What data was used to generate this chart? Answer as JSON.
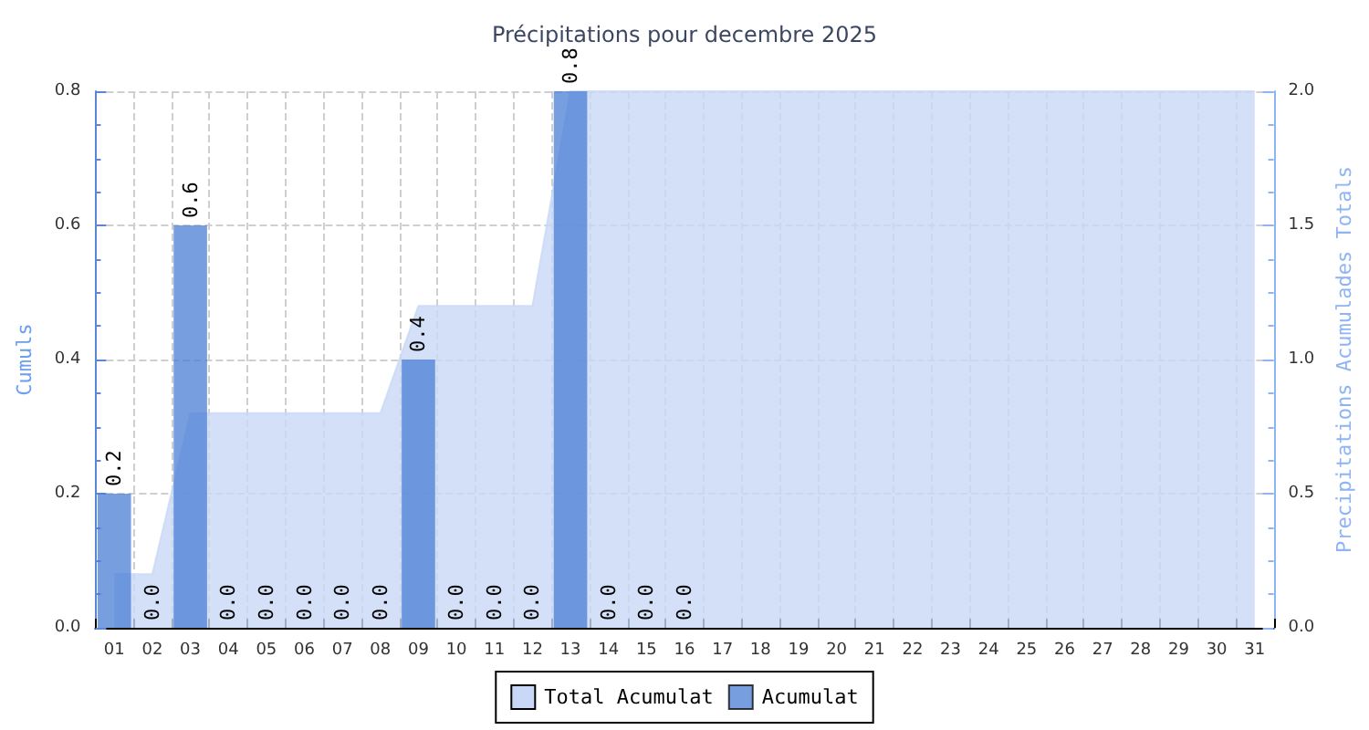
{
  "chart_data": {
    "type": "bar",
    "title": "Précipitations pour decembre 2025",
    "ylabel": "Cumuls",
    "y2label": "Precipitations Acumulades Totals",
    "categories": [
      "01",
      "02",
      "03",
      "04",
      "05",
      "06",
      "07",
      "08",
      "09",
      "10",
      "11",
      "12",
      "13",
      "14",
      "15",
      "16",
      "17",
      "18",
      "19",
      "20",
      "21",
      "22",
      "23",
      "24",
      "25",
      "26",
      "27",
      "28",
      "29",
      "30",
      "31"
    ],
    "series": [
      {
        "name": "Total Acumulat",
        "type": "area",
        "axis": "y2",
        "color": "#c8d8f6",
        "values": [
          0.2,
          0.2,
          0.8,
          0.8,
          0.8,
          0.8,
          0.8,
          0.8,
          1.2,
          1.2,
          1.2,
          1.2,
          2.0,
          2.0,
          2.0,
          2.0,
          2.0,
          2.0,
          2.0,
          2.0,
          2.0,
          2.0,
          2.0,
          2.0,
          2.0,
          2.0,
          2.0,
          2.0,
          2.0,
          2.0,
          2.0
        ]
      },
      {
        "name": "Acumulat",
        "type": "bar",
        "color": "#4a7fd6",
        "values": [
          0.2,
          0,
          0.6,
          0,
          0,
          0,
          0,
          0,
          0.4,
          0,
          0,
          0,
          0.8,
          0,
          0,
          0,
          null,
          null,
          null,
          null,
          null,
          null,
          null,
          null,
          null,
          null,
          null,
          null,
          null,
          null,
          null
        ],
        "value_labels": [
          "0.2",
          "0.0",
          "0.6",
          "0.0",
          "0.0",
          "0.0",
          "0.0",
          "0.0",
          "0.4",
          "0.0",
          "0.0",
          "0.0",
          "0.8",
          "0.0",
          "0.0",
          "0.0",
          null,
          null,
          null,
          null,
          null,
          null,
          null,
          null,
          null,
          null,
          null,
          null,
          null,
          null,
          null
        ]
      }
    ],
    "ylim": [
      0,
      0.8
    ],
    "yticks": [
      {
        "value": 0,
        "label": "0.0"
      },
      0.2,
      0.4,
      0.6,
      0.8
    ],
    "y2lim": [
      0,
      2
    ],
    "y2ticks": [
      {
        "value": 0,
        "label": "0.0"
      },
      0.5,
      {
        "value": 1,
        "label": "1.0"
      },
      1.5,
      {
        "value": 2,
        "label": "2.0"
      }
    ],
    "grid": true,
    "legend": "bottom"
  }
}
